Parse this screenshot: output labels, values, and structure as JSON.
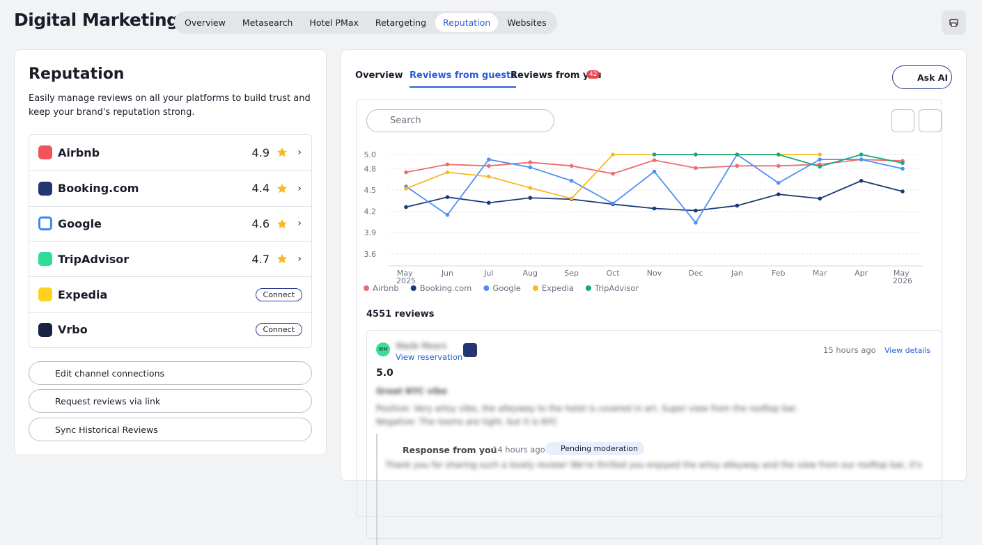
{
  "header": {
    "title": "Digital Marketing",
    "tabs": [
      "Overview",
      "Metasearch",
      "Hotel PMax",
      "Retargeting",
      "Reputation",
      "Websites"
    ],
    "active_tab": 4
  },
  "sidebar": {
    "title": "Reputation",
    "description": "Easily manage reviews on all your platforms to build trust and keep your brand's reputation strong.",
    "channels": [
      {
        "name": "Airbnb",
        "rating": "4.9"
      },
      {
        "name": "Booking.com",
        "rating": "4.4"
      },
      {
        "name": "Google",
        "rating": "4.6"
      },
      {
        "name": "TripAdvisor",
        "rating": "4.7"
      },
      {
        "name": "Expedia",
        "action": "Connect"
      },
      {
        "name": "Vrbo",
        "action": "Connect"
      }
    ],
    "actions": [
      "Edit channel connections",
      "Request reviews via link",
      "Sync Historical Reviews"
    ]
  },
  "panel": {
    "tabs": [
      "Overview",
      "Reviews from guests",
      "Reviews from you"
    ],
    "active_tab": 1,
    "badge": "42",
    "ask_ai": "Ask AI",
    "search_placeholder": "Search",
    "review_count": "4551 reviews",
    "review": {
      "avatar": "WM",
      "author": "Wade Mears",
      "reservation_link": "View reservation",
      "time": "15 hours ago",
      "details_link": "View details",
      "rating": "5.0",
      "headline": "Great NYC vibe",
      "positive": "Positive: Very artsy vibe, the alleyway to the hotel is covered in art. Super view from the rooftop bar.",
      "negative": "Negative: The rooms are tight, but it is NYC",
      "response": {
        "label": "Response from you",
        "time": "14 hours ago",
        "status": "Pending moderation",
        "text": "Thank you for sharing such a lovely review! We're thrilled you enjoyed the artsy alleyway and the view from our rooftop bar, it's"
      }
    }
  },
  "chart_data": {
    "type": "line",
    "categories": [
      "May 2025",
      "Jun",
      "Jul",
      "Aug",
      "Sep",
      "Oct",
      "Nov",
      "Dec",
      "Jan",
      "Feb",
      "Mar",
      "Apr",
      "May 2026"
    ],
    "series": [
      {
        "name": "Airbnb",
        "color": "#ee6b6e",
        "values": [
          4.75,
          4.86,
          4.84,
          4.89,
          4.84,
          4.73,
          4.92,
          4.81,
          4.84,
          4.84,
          4.86,
          4.93,
          4.91
        ]
      },
      {
        "name": "Booking.com",
        "color": "#183a78",
        "values": [
          4.26,
          4.4,
          4.32,
          4.39,
          4.37,
          4.3,
          4.24,
          4.21,
          4.28,
          4.44,
          4.38,
          4.63,
          4.48
        ]
      },
      {
        "name": "Google",
        "color": "#4f8ef7",
        "values": [
          4.55,
          4.15,
          4.93,
          4.82,
          4.63,
          4.31,
          4.76,
          4.04,
          5.0,
          4.6,
          4.93,
          4.93,
          4.8
        ]
      },
      {
        "name": "Expedia",
        "color": "#f5b921",
        "values": [
          4.52,
          4.75,
          4.69,
          4.53,
          4.38,
          5.0,
          5.0,
          5.0,
          5.0,
          5.0,
          5.0,
          null,
          null
        ]
      },
      {
        "name": "TripAdvisor",
        "color": "#17a97e",
        "values": [
          null,
          null,
          null,
          null,
          null,
          null,
          5.0,
          5.0,
          5.0,
          5.0,
          4.83,
          5.0,
          4.88
        ]
      }
    ],
    "ylim": [
      3.5,
      5.0
    ],
    "yticks": [
      3.6,
      3.9,
      4.2,
      4.5,
      4.8,
      {
        "value": 5,
        "label": "5.0"
      }
    ],
    "grid": true,
    "legend": "bottom"
  }
}
